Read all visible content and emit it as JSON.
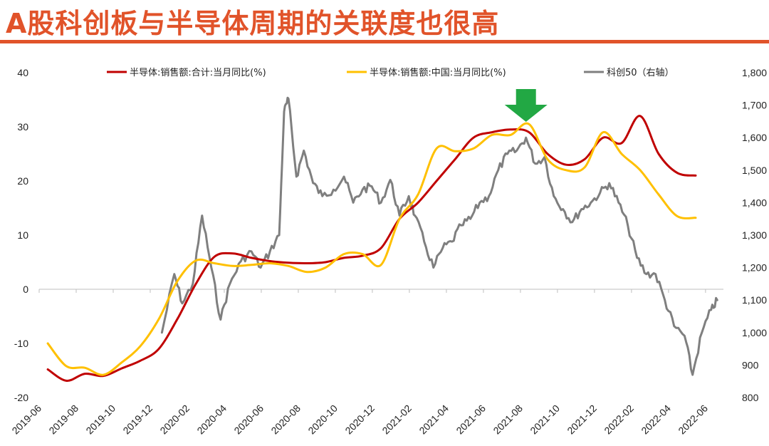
{
  "title": "A股科创板与半导体周期的关联度也很高",
  "colors": {
    "title": "#e1532a",
    "series_total": "#c00000",
    "series_china": "#ffc000",
    "series_star50": "#7f7f7f",
    "arrow": "#22a844"
  },
  "chart_data": {
    "type": "line",
    "x_tick_labels": [
      "2019-06",
      "2019-08",
      "2019-10",
      "2019-12",
      "2020-02",
      "2020-04",
      "2020-06",
      "2020-08",
      "2020-10",
      "2020-12",
      "2021-02",
      "2021-04",
      "2021-06",
      "2021-08",
      "2021-10",
      "2021-12",
      "2022-02",
      "2022-04",
      "2022-06"
    ],
    "y_left": {
      "ylim": [
        -20,
        40
      ],
      "ticks": [
        "-20",
        "-10",
        "0",
        "10",
        "20",
        "30",
        "40"
      ]
    },
    "y_right": {
      "ylim": [
        800,
        1800
      ],
      "ticks": [
        "800",
        "900",
        "1,000",
        "1,100",
        "1,200",
        "1,300",
        "1,400",
        "1,500",
        "1,600",
        "1,700",
        "1,800"
      ]
    },
    "annotations": [
      {
        "type": "down-arrow",
        "x": "2021-08"
      }
    ],
    "series": [
      {
        "name": "半导体:销售额:合计:当月同比(%)",
        "axis": "left",
        "x": [
          "2019-06",
          "2019-07",
          "2019-08",
          "2019-09",
          "2019-10",
          "2019-11",
          "2019-12",
          "2020-01",
          "2020-02",
          "2020-03",
          "2020-04",
          "2020-05",
          "2020-06",
          "2020-07",
          "2020-08",
          "2020-09",
          "2020-10",
          "2020-11",
          "2020-12",
          "2021-01",
          "2021-02",
          "2021-03",
          "2021-04",
          "2021-05",
          "2021-06",
          "2021-07",
          "2021-08",
          "2021-09",
          "2021-10",
          "2021-11",
          "2021-12",
          "2022-01",
          "2022-02",
          "2022-03",
          "2022-04",
          "2022-05"
        ],
        "values": [
          -14.8,
          -16.9,
          -15.6,
          -16.0,
          -14.6,
          -13.2,
          -11.0,
          -5.5,
          1.0,
          6.0,
          6.6,
          5.8,
          5.2,
          4.9,
          4.8,
          5.0,
          5.8,
          6.2,
          7.6,
          13.0,
          16.0,
          20.0,
          24.0,
          28.0,
          29.0,
          29.5,
          29.0,
          25.0,
          23.0,
          24.0,
          28.0,
          27.0,
          32.0,
          25.0,
          21.5,
          21.0
        ]
      },
      {
        "name": "半导体:销售额:中国:当月同比(%)",
        "axis": "left",
        "x": [
          "2019-06",
          "2019-07",
          "2019-08",
          "2019-09",
          "2019-10",
          "2019-11",
          "2019-12",
          "2020-01",
          "2020-02",
          "2020-03",
          "2020-04",
          "2020-05",
          "2020-06",
          "2020-07",
          "2020-08",
          "2020-09",
          "2020-10",
          "2020-11",
          "2020-12",
          "2021-01",
          "2021-02",
          "2021-03",
          "2021-04",
          "2021-05",
          "2021-06",
          "2021-07",
          "2021-08",
          "2021-09",
          "2021-10",
          "2021-11",
          "2021-12",
          "2022-01",
          "2022-02",
          "2022-03",
          "2022-04",
          "2022-05"
        ],
        "values": [
          -10.0,
          -14.2,
          -14.5,
          -15.8,
          -13.5,
          -10.5,
          -5.5,
          1.5,
          5.3,
          4.8,
          4.3,
          4.5,
          4.8,
          4.3,
          3.2,
          4.0,
          6.5,
          6.5,
          4.5,
          13.0,
          17.5,
          26.0,
          25.5,
          26.0,
          28.5,
          28.5,
          30.5,
          24.0,
          22.0,
          22.5,
          29.0,
          25.0,
          22.0,
          17.5,
          13.5,
          13.2
        ]
      },
      {
        "name": "科创50（右轴）",
        "axis": "right",
        "x": [
          "2019-12-20",
          "2020-01-10",
          "2020-01-23",
          "2020-02-10",
          "2020-02-25",
          "2020-03-10",
          "2020-03-25",
          "2020-04-10",
          "2020-04-28",
          "2020-05-15",
          "2020-05-30",
          "2020-06-15",
          "2020-06-30",
          "2020-07-08",
          "2020-07-15",
          "2020-07-28",
          "2020-08-10",
          "2020-08-25",
          "2020-09-10",
          "2020-09-28",
          "2020-10-15",
          "2020-10-30",
          "2020-11-15",
          "2020-11-30",
          "2020-12-15",
          "2020-12-30",
          "2021-01-15",
          "2021-01-30",
          "2021-02-10",
          "2021-02-25",
          "2021-03-10",
          "2021-03-25",
          "2021-04-10",
          "2021-04-25",
          "2021-05-10",
          "2021-05-25",
          "2021-06-10",
          "2021-06-25",
          "2021-07-10",
          "2021-07-25",
          "2021-08-10",
          "2021-08-25",
          "2021-09-10",
          "2021-09-25",
          "2021-10-10",
          "2021-10-25",
          "2021-11-10",
          "2021-11-25",
          "2021-12-10",
          "2021-12-25",
          "2022-01-10",
          "2022-01-25",
          "2022-02-10",
          "2022-02-25",
          "2022-03-10",
          "2022-03-25",
          "2022-04-10",
          "2022-04-27",
          "2022-05-10",
          "2022-05-25",
          "2022-06-10",
          "2022-06-20"
        ],
        "values": [
          1000,
          1180,
          1090,
          1150,
          1360,
          1200,
          1040,
          1150,
          1220,
          1250,
          1200,
          1250,
          1300,
          1680,
          1720,
          1480,
          1560,
          1460,
          1420,
          1440,
          1480,
          1400,
          1440,
          1450,
          1400,
          1470,
          1360,
          1420,
          1360,
          1280,
          1200,
          1260,
          1280,
          1330,
          1350,
          1400,
          1420,
          1500,
          1550,
          1560,
          1600,
          1520,
          1540,
          1420,
          1380,
          1340,
          1380,
          1400,
          1430,
          1460,
          1400,
          1330,
          1230,
          1180,
          1180,
          1100,
          1020,
          990,
          870,
          1000,
          1070,
          1100
        ]
      }
    ]
  }
}
